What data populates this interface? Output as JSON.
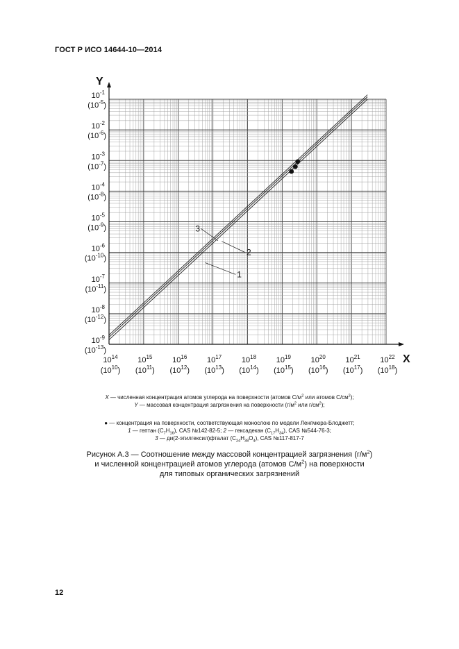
{
  "header": {
    "standard": "ГОСТ Р ИСО 14644-10—2014"
  },
  "chart_data": {
    "type": "line",
    "title": "",
    "x_axis": {
      "label": "X",
      "scale": "log",
      "range": [
        100000000000000.0,
        1e+22
      ],
      "ticks": [
        {
          "value": 100000000000000.0,
          "main": "10",
          "exp": "14",
          "alt": "(10",
          "alt_exp": "10",
          "alt_close": ")"
        },
        {
          "value": 1000000000000000.0,
          "main": "10",
          "exp": "15",
          "alt": "(10",
          "alt_exp": "11",
          "alt_close": ")"
        },
        {
          "value": 1e+16,
          "main": "10",
          "exp": "16",
          "alt": "(10",
          "alt_exp": "12",
          "alt_close": ")"
        },
        {
          "value": 1e+17,
          "main": "10",
          "exp": "17",
          "alt": "(10",
          "alt_exp": "13",
          "alt_close": ")"
        },
        {
          "value": 1e+18,
          "main": "10",
          "exp": "18",
          "alt": "(10",
          "alt_exp": "14",
          "alt_close": ")"
        },
        {
          "value": 1e+19,
          "main": "10",
          "exp": "19",
          "alt": "(10",
          "alt_exp": "15",
          "alt_close": ")"
        },
        {
          "value": 1e+20,
          "main": "10",
          "exp": "20",
          "alt": "(10",
          "alt_exp": "16",
          "alt_close": ")"
        },
        {
          "value": 1e+21,
          "main": "10",
          "exp": "21",
          "alt": "(10",
          "alt_exp": "17",
          "alt_close": ")"
        },
        {
          "value": 1e+22,
          "main": "10",
          "exp": "22",
          "alt": "(10",
          "alt_exp": "18",
          "alt_close": ")"
        }
      ]
    },
    "y_axis": {
      "label": "Y",
      "scale": "log",
      "range": [
        1e-09,
        0.1
      ],
      "ticks": [
        {
          "value": 0.1,
          "main": "10",
          "exp": "-1",
          "alt": "(10",
          "alt_exp": "-5",
          "alt_close": ")"
        },
        {
          "value": 0.01,
          "main": "10",
          "exp": "-2",
          "alt": "(10",
          "alt_exp": "-6",
          "alt_close": ")"
        },
        {
          "value": 0.001,
          "main": "10",
          "exp": "-3",
          "alt": "(10",
          "alt_exp": "-7",
          "alt_close": ")"
        },
        {
          "value": 0.0001,
          "main": "10",
          "exp": "-4",
          "alt": "(10",
          "alt_exp": "-8",
          "alt_close": ")"
        },
        {
          "value": 1e-05,
          "main": "10",
          "exp": "-5",
          "alt": "(10",
          "alt_exp": "-9",
          "alt_close": ")"
        },
        {
          "value": 1e-06,
          "main": "10",
          "exp": "-6",
          "alt": "(10",
          "alt_exp": "-10",
          "alt_close": ")"
        },
        {
          "value": 1e-07,
          "main": "10",
          "exp": "-7",
          "alt": "(10",
          "alt_exp": "-11",
          "alt_close": ")"
        },
        {
          "value": 1e-08,
          "main": "10",
          "exp": "-8",
          "alt": "(10",
          "alt_exp": "-12",
          "alt_close": ")"
        },
        {
          "value": 1e-09,
          "main": "10",
          "exp": "-9",
          "alt": "(10",
          "alt_exp": "-13",
          "alt_close": ")"
        }
      ]
    },
    "grid": true,
    "series": [
      {
        "name": "1",
        "x": [
          100000000000000.0,
          2.9e+21
        ],
        "y": [
          1.4e-09,
          0.1
        ]
      },
      {
        "name": "2",
        "x": [
          100000000000000.0,
          2.9e+21
        ],
        "y": [
          1.7e-09,
          0.12
        ]
      },
      {
        "name": "3",
        "x": [
          100000000000000.0,
          2.9e+21
        ],
        "y": [
          2e-09,
          0.14
        ]
      }
    ],
    "monolayer_points": [
      {
        "x": 1.85e+19,
        "y": 0.00044
      },
      {
        "x": 2.4e+19,
        "y": 0.00063
      },
      {
        "x": 2.8e+19,
        "y": 0.00092
      }
    ],
    "annotations": [
      {
        "label": "1",
        "target_x": 6e+16,
        "target_y": 4.6e-07,
        "label_x": 4.5e+17,
        "label_y": 1.9e-07
      },
      {
        "label": "2",
        "target_x": 1.8e+17,
        "target_y": 2.3e-06,
        "label_x": 8.5e+17,
        "label_y": 1e-06
      },
      {
        "label": "3",
        "target_x": 1.4e+17,
        "target_y": 2.4e-06,
        "label_x": 4.5e+16,
        "label_y": 6e-06
      }
    ]
  },
  "legend": {
    "x_sym": "X",
    "x_text": " — численная концентрация атомов углерода на поверхности (атомов С/м",
    "x_sup1": "2",
    "x_mid": " или атомов С/см",
    "x_sup2": "2",
    "x_end": ");",
    "y_sym": "Y",
    "y_text": " — массовая концентрация загрязнения на поверхности (г/м",
    "y_sup1": "2",
    "y_mid": " или г/см",
    "y_sup2": "2",
    "y_end": ");",
    "dot_text": "● — концентрация на поверхности, соответствующая монослою по модели Ленгмюра-Блоджетт;",
    "l1_num": "1",
    "l1_a": " — гептан (С",
    "l1_s1": "7",
    "l1_b": "Н",
    "l1_s2": "16",
    "l1_c": "), CAS №142-82-5; ",
    "l2_num": "2",
    "l2_a": " — гексадекан (С",
    "l2_s1": "17",
    "l2_b": "Н",
    "l2_s2": "34",
    "l2_c": "), CAS №544-76-3;",
    "l3_num": "3",
    "l3_a": " — ди(2-этилгексил)фталат (С",
    "l3_s1": "24",
    "l3_b": "Н",
    "l3_s2": "38",
    "l3_c": "О",
    "l3_s3": "4",
    "l3_d": "), CAS №117-817-7"
  },
  "caption": {
    "line1_a": "Рисунок А.3 — Соотношение между массовой концентрацией загрязнения (г/м",
    "line1_sup": "2",
    "line1_b": ")",
    "line2_a": "и численной концентрацией атомов углерода (атомов С/м",
    "line2_sup": "2",
    "line2_b": ") на поверхности",
    "line3": "для типовых органических загрязнений"
  },
  "page": {
    "number": "12"
  }
}
